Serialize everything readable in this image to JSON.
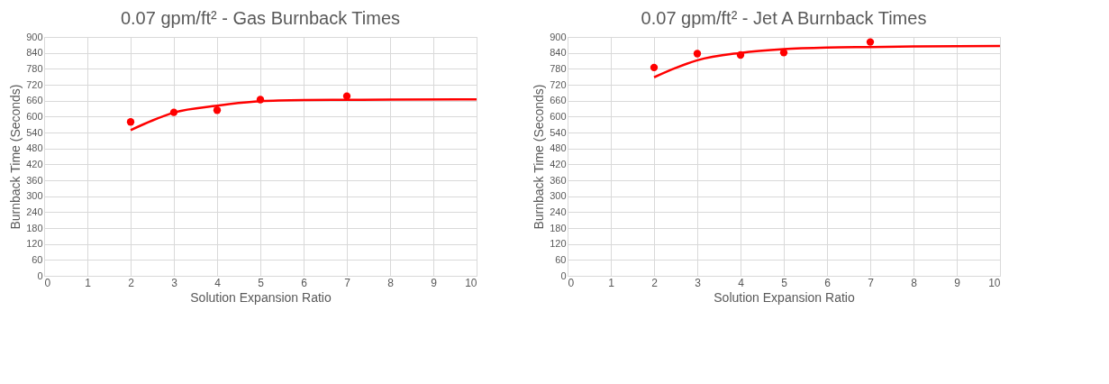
{
  "chart_data": [
    {
      "type": "scatter",
      "title": "0.07 gpm/ft² - Gas Burnback Times",
      "xlabel": "Solution Expansion Ratio",
      "ylabel": "Burnback  Time (Seconds)",
      "xlim": [
        0,
        10
      ],
      "xticks": [
        0,
        1,
        2,
        3,
        4,
        5,
        6,
        7,
        8,
        9,
        10
      ],
      "ylim": [
        0,
        900
      ],
      "yticks": [
        0,
        60,
        120,
        180,
        240,
        300,
        360,
        420,
        480,
        540,
        600,
        660,
        720,
        780,
        840,
        900
      ],
      "grid": true,
      "series": [
        {
          "color": "#ff0000",
          "marker": "circle",
          "x": [
            2,
            3,
            4,
            5,
            7
          ],
          "values": [
            580,
            616,
            624,
            664,
            677
          ]
        },
        {
          "type": "line",
          "color": "#ff0000",
          "x": [
            2,
            2.5,
            3,
            4,
            5,
            6,
            7,
            8,
            10
          ],
          "values": [
            549,
            585,
            615,
            641,
            658,
            662,
            663,
            664,
            665
          ]
        }
      ]
    },
    {
      "type": "scatter",
      "title": "0.07 gpm/ft² - Jet A Burnback Times",
      "xlabel": "Solution Expansion Ratio",
      "ylabel": "Burnback  Time (Seconds)",
      "xlim": [
        0,
        10
      ],
      "xticks": [
        0,
        1,
        2,
        3,
        4,
        5,
        6,
        7,
        8,
        9,
        10
      ],
      "ylim": [
        0,
        900
      ],
      "yticks": [
        0,
        60,
        120,
        180,
        240,
        300,
        360,
        420,
        480,
        540,
        600,
        660,
        720,
        780,
        840,
        900
      ],
      "grid": true,
      "series": [
        {
          "color": "#ff0000",
          "marker": "circle",
          "x": [
            2,
            3,
            4,
            5,
            7
          ],
          "values": [
            785,
            837,
            832,
            841,
            881
          ]
        },
        {
          "type": "line",
          "color": "#ff0000",
          "x": [
            2,
            2.5,
            3,
            4,
            5,
            6,
            7,
            8,
            10
          ],
          "values": [
            748,
            783,
            812,
            840,
            854,
            860,
            862,
            864,
            866
          ]
        }
      ]
    }
  ]
}
